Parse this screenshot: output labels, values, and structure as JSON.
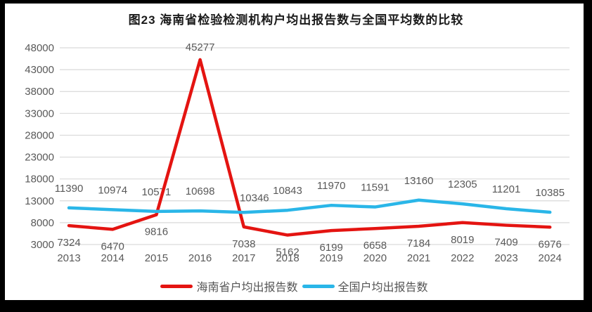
{
  "title": "图23  海南省检验检测机构户均出报告数与全国平均数的比较",
  "chart_data": {
    "type": "line",
    "categories": [
      "2013",
      "2014",
      "2015",
      "2016",
      "2017",
      "2018",
      "2019",
      "2020",
      "2021",
      "2022",
      "2023",
      "2024"
    ],
    "series": [
      {
        "name": "海南省户均出报告数",
        "color": "#e41411",
        "values": [
          7324,
          6470,
          9816,
          45277,
          7038,
          5162,
          6199,
          6658,
          7184,
          8019,
          7409,
          6976
        ],
        "label_position": "below",
        "label_position_overrides": {
          "3": "above"
        }
      },
      {
        "name": "全国户均出报告数",
        "color": "#2ab6e8",
        "values": [
          11390,
          10974,
          10571,
          10698,
          10346,
          10843,
          11970,
          11591,
          13160,
          12305,
          11201,
          10385
        ],
        "label_position": "above"
      }
    ],
    "ylim": [
      3000,
      48000
    ],
    "yticks": [
      3000,
      8000,
      13000,
      18000,
      23000,
      28000,
      33000,
      38000,
      43000,
      48000
    ],
    "grid": true,
    "data_labels": true,
    "legend_position": "bottom"
  },
  "styles": {
    "frame_color": "#000000",
    "background": "#ffffff",
    "grid_color": "#d9d9d9",
    "axis_label_color": "#595959",
    "data_label_color": "#595959",
    "title_color": "#1a1a1a",
    "legend_text_color": "#555555"
  }
}
